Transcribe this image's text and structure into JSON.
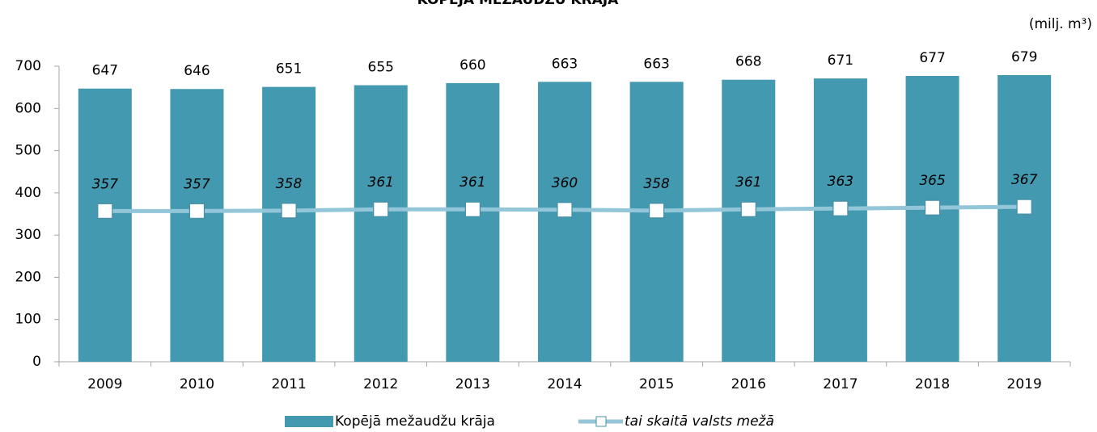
{
  "chart_data": {
    "type": "bar_line",
    "title": "KOPĒJĀ MEŽAUDŽU KRĀJA",
    "unit_label": "(milj. m³)",
    "categories": [
      "2009",
      "2010",
      "2011",
      "2012",
      "2013",
      "2014",
      "2015",
      "2016",
      "2017",
      "2018",
      "2019"
    ],
    "series": [
      {
        "name": "Kopējā mežaudžu krāja",
        "type": "bar",
        "color": "#4399b0",
        "values": [
          647,
          646,
          651,
          655,
          660,
          663,
          663,
          668,
          671,
          677,
          679
        ]
      },
      {
        "name": "tai skaitā valsts mežā",
        "type": "line",
        "color": "#93c6d9",
        "values": [
          357,
          357,
          358,
          361,
          361,
          360,
          358,
          361,
          363,
          365,
          367
        ]
      }
    ],
    "ylim": [
      0,
      700
    ],
    "yticks": [
      0,
      100,
      200,
      300,
      400,
      500,
      600,
      700
    ],
    "grid": false
  }
}
